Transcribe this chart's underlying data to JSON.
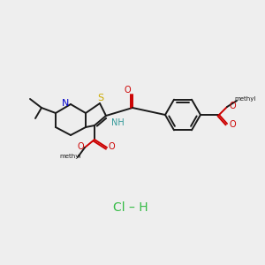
{
  "bg_color": "#eeeeee",
  "figsize": [
    3.0,
    3.0
  ],
  "dpi": 100,
  "bond_color": "#1a1a1a",
  "S_color": "#ccaa00",
  "N_color": "#0000cc",
  "O_color": "#cc0000",
  "NH_color": "#339999",
  "HCl_color": "#33bb44",
  "lw": 1.4,
  "fs": 7.0,
  "HCl_text": "Cl – H",
  "methyl_top_label": "methyl",
  "methyl_right_label": "methyl"
}
